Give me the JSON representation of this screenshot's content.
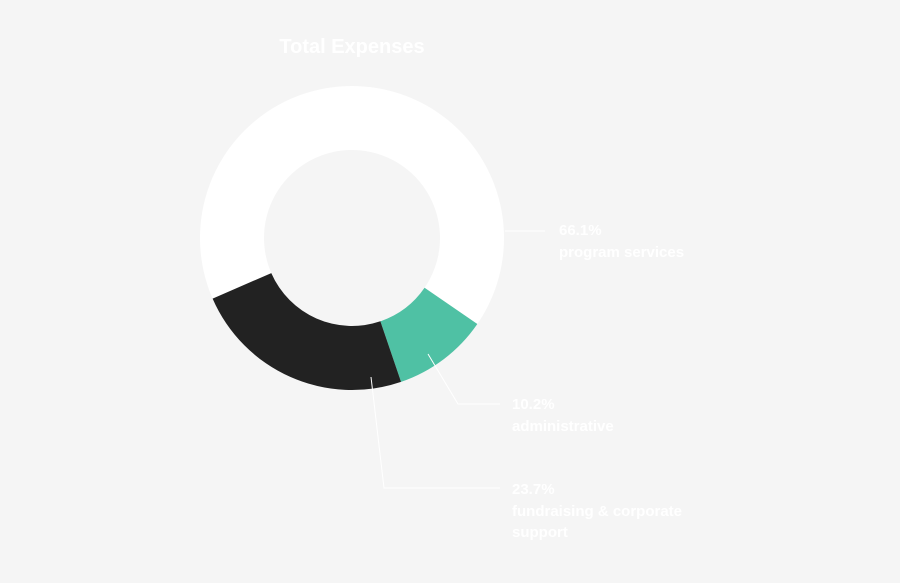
{
  "chart_data": {
    "type": "pie",
    "donut": true,
    "title": "Total Expenses",
    "categories": [
      "program services",
      "administrative",
      "fundraising & corporate support"
    ],
    "values": [
      66.1,
      10.2,
      23.7
    ],
    "value_labels": [
      "66.1%",
      "10.2%",
      "23.7%"
    ],
    "colors": [
      "#ffffff",
      "#4fc1a4",
      "#222222"
    ]
  }
}
